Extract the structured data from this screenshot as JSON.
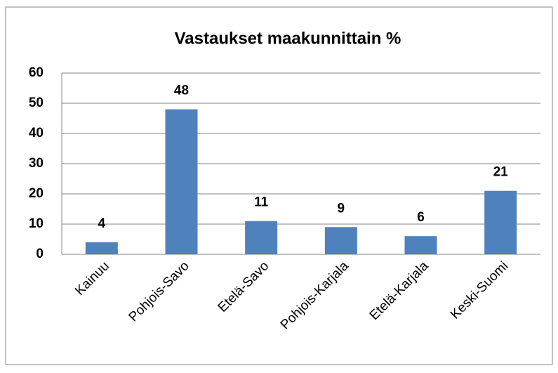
{
  "chart_data": {
    "type": "bar",
    "title": "Vastaukset maakunnittain %",
    "categories": [
      "Kainuu",
      "Pohjois-Savo",
      "Etelä-Savo",
      "Pohjois-Karjala",
      "Etelä-Karjala",
      "Keski-Suomi"
    ],
    "values": [
      4,
      48,
      11,
      9,
      6,
      21
    ],
    "color": "#4f81bd",
    "ylim": [
      0,
      60
    ],
    "yticks": [
      0,
      10,
      20,
      30,
      40,
      50,
      60
    ],
    "grid": true
  }
}
